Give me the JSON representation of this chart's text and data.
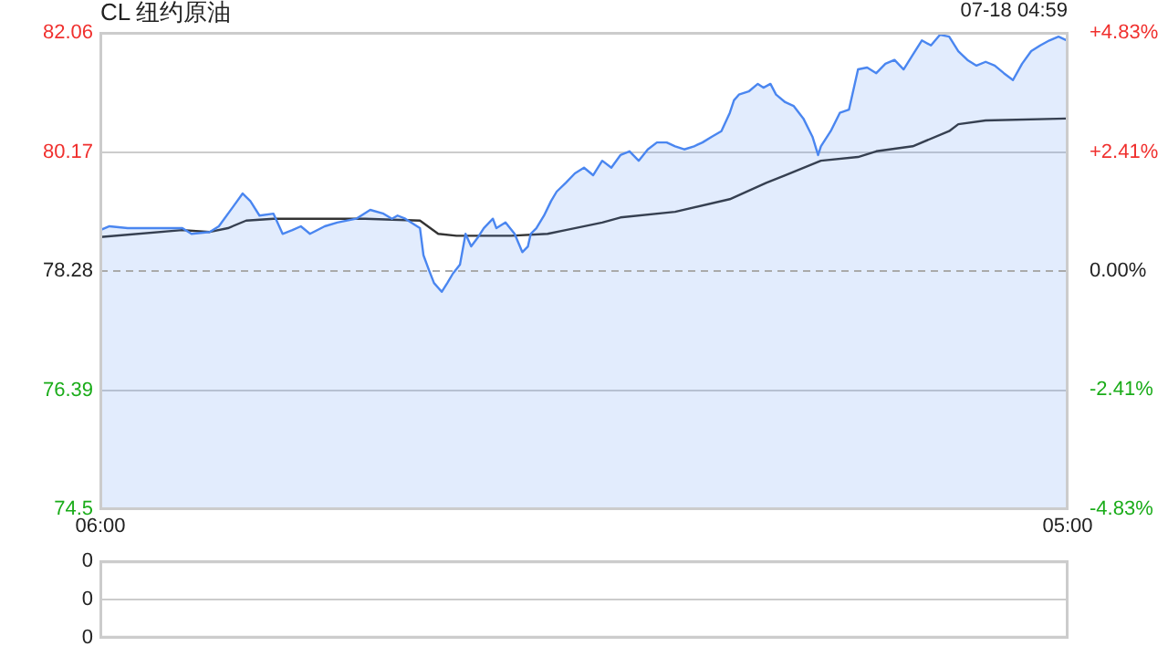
{
  "chart_data": [
    {
      "type": "area",
      "title": "CL 纽约原油",
      "annotations": [
        "07-18 04:59"
      ],
      "series": [
        {
          "type": "area",
          "color": "#4a86f0",
          "x": [
            "--07-17T06:00",
            "--07-17T06:13",
            "--07-17T06:39",
            "--07-17T07:05",
            "--07-17T07:57",
            "--07-17T08:10",
            "--07-17T08:36",
            "--07-17T08:49",
            "--07-17T09:10",
            "--07-17T09:23",
            "--07-17T09:34",
            "--07-17T09:47",
            "--07-17T10:07",
            "--07-17T10:20",
            "--07-17T10:34",
            "--07-17T10:46",
            "--07-17T10:59",
            "--07-17T11:20",
            "--07-17T11:38",
            "--07-17T12:05",
            "--07-17T12:25",
            "--07-17T12:44",
            "--07-17T12:56",
            "--07-17T13:04",
            "--07-17T13:15",
            "--07-17T13:36",
            "--07-17T13:41",
            "--07-17T13:49",
            "--07-17T13:56",
            "--07-17T14:07",
            "--07-17T14:15",
            "--07-17T14:23",
            "--07-17T14:33",
            "--07-17T14:41",
            "--07-17T14:49",
            "--07-17T14:59",
            "--07-17T15:07",
            "--07-17T15:20",
            "--07-17T15:25",
            "--07-17T15:38",
            "--07-17T15:51",
            "--07-17T16:02",
            "--07-17T16:10",
            "--07-17T16:14",
            "--07-17T16:22",
            "--07-17T16:33",
            "--07-17T16:43",
            "--07-17T16:51",
            "--07-17T17:04",
            "--07-17T17:17",
            "--07-17T17:30",
            "--07-17T17:43",
            "--07-17T17:56",
            "--07-17T18:09",
            "--07-17T18:22",
            "--07-17T18:35",
            "--07-17T18:48",
            "--07-17T19:01",
            "--07-17T19:14",
            "--07-17T19:28",
            "--07-17T19:40",
            "--07-17T19:53",
            "--07-17T20:07",
            "--07-17T20:19",
            "--07-17T20:32",
            "--07-17T20:46",
            "--07-17T20:58",
            "--07-17T21:04",
            "--07-17T21:11",
            "--07-17T21:25",
            "--07-17T21:38",
            "--07-17T21:46",
            "--07-17T21:56",
            "--07-17T22:04",
            "--07-17T22:17",
            "--07-17T22:29",
            "--07-17T22:43",
            "--07-17T22:56",
            "--07-17T23:04",
            "--07-17T23:08",
            "--07-17T23:22",
            "--07-17T23:35",
            "--07-17T23:48",
            "--07-18T00:01",
            "--07-18T00:14",
            "--07-18T00:27",
            "--07-18T00:40",
            "--07-18T00:53",
            "--07-18T01:06",
            "--07-18T01:19",
            "--07-18T01:32",
            "--07-18T01:45",
            "--07-18T01:58",
            "--07-18T02:11",
            "--07-18T02:24",
            "--07-18T02:37",
            "--07-18T02:50",
            "--07-18T03:03",
            "--07-18T03:16",
            "--07-18T03:29",
            "--07-18T03:42",
            "--07-18T03:55",
            "--07-18T04:08",
            "--07-18T04:21",
            "--07-18T04:34",
            "--07-18T04:47",
            "--07-18T04:59"
          ],
          "values": [
            78.93,
            78.99,
            78.96,
            78.96,
            78.96,
            78.87,
            78.9,
            78.99,
            79.31,
            79.51,
            79.39,
            79.16,
            79.19,
            78.87,
            78.93,
            78.99,
            78.87,
            78.99,
            79.05,
            79.11,
            79.25,
            79.19,
            79.11,
            79.16,
            79.11,
            78.96,
            78.53,
            78.29,
            78.09,
            77.95,
            78.09,
            78.24,
            78.38,
            78.87,
            78.67,
            78.82,
            78.96,
            79.11,
            78.96,
            79.05,
            78.87,
            78.58,
            78.67,
            78.87,
            78.96,
            79.16,
            79.39,
            79.54,
            79.68,
            79.83,
            79.92,
            79.8,
            80.03,
            79.92,
            80.12,
            80.18,
            80.03,
            80.21,
            80.32,
            80.32,
            80.26,
            80.21,
            80.26,
            80.32,
            80.41,
            80.5,
            80.79,
            80.99,
            81.08,
            81.13,
            81.25,
            81.19,
            81.25,
            81.08,
            80.96,
            80.9,
            80.7,
            80.41,
            80.12,
            80.26,
            80.5,
            80.79,
            80.84,
            81.48,
            81.51,
            81.42,
            81.57,
            81.63,
            81.48,
            81.71,
            81.94,
            81.86,
            82.03,
            82.0,
            81.77,
            81.63,
            81.54,
            81.6,
            81.54,
            81.42,
            81.31,
            81.57,
            81.77,
            81.86,
            81.94,
            82.0,
            81.94
          ]
        },
        {
          "type": "line",
          "color": "#333333",
          "x": [
            "--07-17T06:00",
            "--07-17T07:57",
            "--07-17T08:36",
            "--07-17T09:02",
            "--07-17T09:28",
            "--07-17T10:07",
            "--07-17T11:26",
            "--07-17T12:18",
            "--07-17T13:36",
            "--07-17T14:02",
            "--07-17T14:28",
            "--07-17T15:46",
            "--07-17T16:38",
            "--07-17T17:04",
            "--07-17T17:56",
            "--07-17T18:22",
            "--07-17T19:40",
            "--07-17T20:58",
            "--07-17T21:50",
            "--07-17T22:17",
            "--07-17T23:08",
            "--07-18T00:01",
            "--07-18T00:27",
            "--07-18T01:19",
            "--07-18T02:11",
            "--07-18T02:24",
            "--07-18T03:03",
            "--07-18T04:59"
          ],
          "values": [
            78.82,
            78.93,
            78.9,
            78.96,
            79.08,
            79.11,
            79.11,
            79.11,
            79.08,
            78.87,
            78.84,
            78.84,
            78.87,
            78.93,
            79.05,
            79.13,
            79.22,
            79.42,
            79.68,
            79.8,
            80.03,
            80.09,
            80.18,
            80.26,
            80.5,
            80.61,
            80.67,
            80.7
          ]
        }
      ],
      "xlim": [
        "--07-17T06:00",
        "--07-18T05:00"
      ],
      "xticks": [
        {
          "value": "--07-17T06:00",
          "label": "06:00"
        },
        {
          "value": "--07-18T05:00",
          "label": "05:00"
        }
      ],
      "ylim": [
        74.5,
        82.06
      ],
      "yticks": [
        74.5,
        76.39,
        78.28,
        80.17,
        82.06
      ],
      "y2lim": [
        -4.83,
        4.83
      ],
      "y2ticks": [
        {
          "value": -4.83,
          "label": "-4.83%"
        },
        {
          "value": -2.41,
          "label": "-2.41%"
        },
        {
          "value": 0,
          "label": "0.00%"
        },
        {
          "value": 2.41,
          "label": "+2.41%"
        },
        {
          "value": 4.83,
          "label": "+4.83%"
        }
      ],
      "ref_lines": [
        {
          "axis": "y",
          "value": 78.28,
          "line_style": "dashed"
        }
      ],
      "grid": "y",
      "marker": "none"
    },
    {
      "type": "bar",
      "categories": [
        null
      ],
      "values": [
        0
      ],
      "ylim": [
        0,
        0.4
      ],
      "yticks": [
        {
          "value": 0,
          "label": "0"
        },
        {
          "value": 0.2,
          "label": "0"
        },
        {
          "value": 0.4,
          "label": "0"
        }
      ],
      "grid": "y",
      "tick_labels": "y"
    }
  ]
}
